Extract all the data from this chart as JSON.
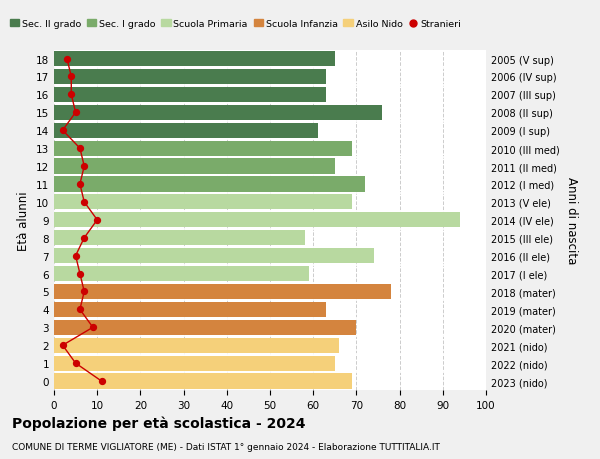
{
  "ages": [
    0,
    1,
    2,
    3,
    4,
    5,
    6,
    7,
    8,
    9,
    10,
    11,
    12,
    13,
    14,
    15,
    16,
    17,
    18
  ],
  "years": [
    "2023 (nido)",
    "2022 (nido)",
    "2021 (nido)",
    "2020 (mater)",
    "2019 (mater)",
    "2018 (mater)",
    "2017 (I ele)",
    "2016 (II ele)",
    "2015 (III ele)",
    "2014 (IV ele)",
    "2013 (V ele)",
    "2012 (I med)",
    "2011 (II med)",
    "2010 (III med)",
    "2009 (I sup)",
    "2008 (II sup)",
    "2007 (III sup)",
    "2006 (IV sup)",
    "2005 (V sup)"
  ],
  "bar_values": [
    69,
    65,
    66,
    70,
    63,
    78,
    59,
    74,
    58,
    94,
    69,
    72,
    65,
    69,
    61,
    76,
    63,
    63,
    65
  ],
  "bar_colors": [
    "#f5d07a",
    "#f5d07a",
    "#f5d07a",
    "#d4843e",
    "#d4843e",
    "#d4843e",
    "#b8d9a0",
    "#b8d9a0",
    "#b8d9a0",
    "#b8d9a0",
    "#b8d9a0",
    "#7aab6a",
    "#7aab6a",
    "#7aab6a",
    "#4a7c4e",
    "#4a7c4e",
    "#4a7c4e",
    "#4a7c4e",
    "#4a7c4e"
  ],
  "stranieri_values": [
    11,
    5,
    2,
    9,
    6,
    7,
    6,
    5,
    7,
    10,
    7,
    6,
    7,
    6,
    2,
    5,
    4,
    4,
    3
  ],
  "stranieri_color": "#cc0000",
  "legend_labels": [
    "Sec. II grado",
    "Sec. I grado",
    "Scuola Primaria",
    "Scuola Infanzia",
    "Asilo Nido",
    "Stranieri"
  ],
  "legend_colors": [
    "#4a7c4e",
    "#7aab6a",
    "#b8d9a0",
    "#d4843e",
    "#f5d07a",
    "#cc0000"
  ],
  "ylabel_left": "Età alunni",
  "ylabel_right": "Anni di nascita",
  "title": "Popolazione per età scolastica - 2024",
  "subtitle": "COMUNE DI TERME VIGLIATORE (ME) - Dati ISTAT 1° gennaio 2024 - Elaborazione TUTTITALIA.IT",
  "xlim": [
    0,
    100
  ],
  "xticks": [
    0,
    10,
    20,
    30,
    40,
    50,
    60,
    70,
    80,
    90,
    100
  ],
  "background_color": "#f0f0f0",
  "plot_bg_color": "#ffffff",
  "grid_color": "#cccccc"
}
